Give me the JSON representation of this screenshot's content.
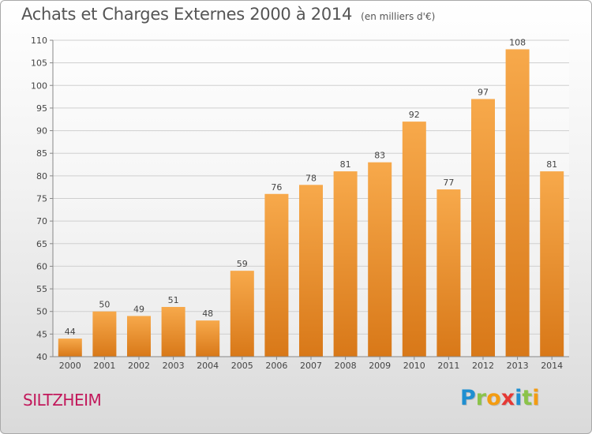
{
  "title": "Achats et Charges Externes 2000 à 2014",
  "unit_label": "(en milliers d'€)",
  "commune": "SILTZHEIM",
  "logo": {
    "letters": [
      "P",
      "r",
      "o",
      "x",
      "i",
      "t",
      "i"
    ],
    "colors": [
      "#1f8fd1",
      "#8bc34a",
      "#f39c12",
      "#e53935",
      "#1f8fd1",
      "#8bc34a",
      "#f39c12"
    ]
  },
  "colors": {
    "bar_light": "#f7a94b",
    "bar_dark": "#d87818",
    "grid": "#cfcfcf",
    "axis": "#888888",
    "text": "#444444"
  },
  "chart_data": {
    "type": "bar",
    "title": "Achats et Charges Externes 2000 à 2014",
    "unit": "(en milliers d'€)",
    "categories": [
      "2000",
      "2001",
      "2002",
      "2003",
      "2004",
      "2005",
      "2006",
      "2007",
      "2008",
      "2009",
      "2010",
      "2011",
      "2012",
      "2013",
      "2014"
    ],
    "values": [
      44,
      50,
      49,
      51,
      48,
      59,
      76,
      78,
      81,
      83,
      92,
      77,
      97,
      108,
      81
    ],
    "ylim": [
      40,
      110
    ],
    "yticks": [
      40,
      45,
      50,
      55,
      60,
      65,
      70,
      75,
      80,
      85,
      90,
      95,
      100,
      105,
      110
    ],
    "grid": true,
    "data_labels": true
  }
}
